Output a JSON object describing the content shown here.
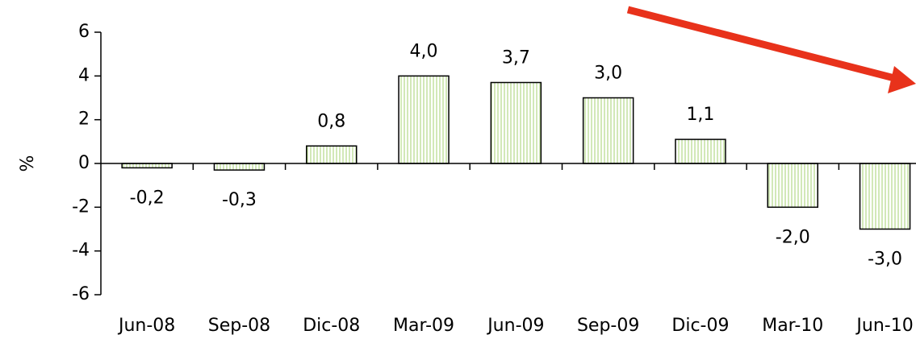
{
  "chart_data": {
    "type": "bar",
    "categories": [
      "Jun-08",
      "Sep-08",
      "Dic-08",
      "Mar-09",
      "Jun-09",
      "Sep-09",
      "Dic-09",
      "Mar-10",
      "Jun-10"
    ],
    "values": [
      -0.2,
      -0.3,
      0.8,
      4.0,
      3.7,
      3.0,
      1.1,
      -2.0,
      -3.0
    ],
    "value_labels": [
      "-0,2",
      "-0,3",
      "0,8",
      "4,0",
      "3,7",
      "3,0",
      "1,1",
      "-2,0",
      "-3,0"
    ],
    "ylabel": "%",
    "ylim": [
      -6,
      6
    ],
    "yticks": [
      -6,
      -4,
      -2,
      0,
      2,
      4,
      6
    ],
    "color": "#b5d98a",
    "grid": false
  }
}
